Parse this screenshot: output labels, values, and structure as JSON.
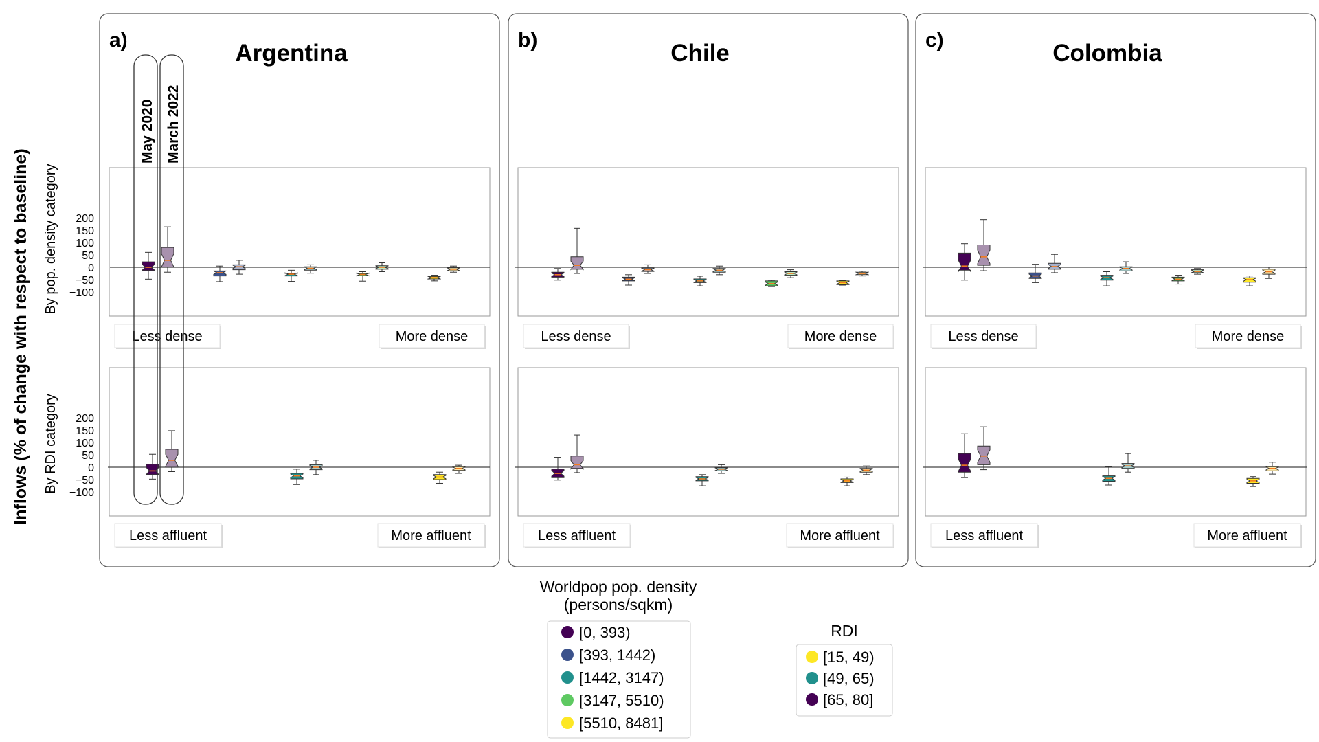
{
  "figure": {
    "ylabel_main": "Inflows (% of change with respect to baseline)",
    "row_labels": [
      "By pop. density category",
      "By RDI category"
    ],
    "period_labels": [
      "May 2020",
      "March 2022"
    ],
    "yticks": [
      "200",
      "150",
      "100",
      "50",
      "0",
      "−50",
      "−100"
    ],
    "density_end_labels": [
      "Less dense",
      "More dense"
    ],
    "rdi_end_labels": [
      "Less affluent",
      "More affluent"
    ]
  },
  "legends": {
    "density": {
      "title_line1": "Worldpop pop. density",
      "title_line2": "(persons/sqkm)",
      "items": [
        {
          "label": "[0, 393)",
          "color": "#440154"
        },
        {
          "label": "[393, 1442)",
          "color": "#3b528b"
        },
        {
          "label": "[1442, 3147)",
          "color": "#21908c"
        },
        {
          "label": "[3147, 5510)",
          "color": "#5ec962"
        },
        {
          "label": "[5510, 8481]",
          "color": "#fde725"
        }
      ]
    },
    "rdi": {
      "title": "RDI",
      "items": [
        {
          "label": "[15, 49)",
          "color": "#fde725"
        },
        {
          "label": "[49, 65)",
          "color": "#21908c"
        },
        {
          "label": "[65, 80]",
          "color": "#440154"
        }
      ]
    }
  },
  "chart_data": [
    {
      "type": "boxplot",
      "country": "Argentina",
      "panel_label": "a)",
      "ylim": [
        -100,
        200
      ],
      "density": {
        "categories": [
          "[0, 393)",
          "[393, 1442)",
          "[1442, 3147)",
          "[3147, 5510)",
          "[5510, 8481]"
        ],
        "series": [
          {
            "name": "May 2020",
            "boxes": [
              [
                -48,
                -13,
                0,
                22,
                60
              ],
              [
                -58,
                -35,
                -22,
                -15,
                5
              ],
              [
                -57,
                -35,
                -28,
                -25,
                -12
              ],
              [
                -56,
                -34,
                -29,
                -25,
                -18
              ],
              [
                -55,
                -47,
                -42,
                -37,
                -32
              ]
            ]
          },
          {
            "name": "March 2022",
            "boxes": [
              [
                -20,
                0,
                28,
                80,
                163
              ],
              [
                -28,
                -10,
                2,
                10,
                28
              ],
              [
                -24,
                -12,
                -4,
                2,
                10
              ],
              [
                -18,
                -8,
                0,
                6,
                18
              ],
              [
                -20,
                -14,
                -8,
                -2,
                5
              ]
            ]
          }
        ]
      },
      "rdi": {
        "categories": [
          "[15, 49)",
          "[49, 65)",
          "[65, 80]"
        ],
        "series": [
          {
            "name": "May 2020",
            "boxes": [
              [
                -48,
                -30,
                -15,
                12,
                52
              ],
              [
                -70,
                -47,
                -35,
                -25,
                -8
              ],
              [
                -65,
                -50,
                -40,
                -30,
                -20
              ]
            ]
          },
          {
            "name": "March 2022",
            "boxes": [
              [
                -18,
                0,
                28,
                72,
                147
              ],
              [
                -30,
                -10,
                0,
                10,
                28
              ],
              [
                -25,
                -13,
                -5,
                2,
                8
              ]
            ]
          }
        ]
      }
    },
    {
      "type": "boxplot",
      "country": "Chile",
      "panel_label": "b)",
      "ylim": [
        -100,
        200
      ],
      "density": {
        "categories": [
          "[0, 393)",
          "[393, 1442)",
          "[1442, 3147)",
          "[3147, 5510)",
          "[5510, 8481]"
        ],
        "series": [
          {
            "name": "May 2020",
            "boxes": [
              [
                -52,
                -40,
                -30,
                -20,
                -5
              ],
              [
                -72,
                -55,
                -48,
                -40,
                -30
              ],
              [
                -75,
                -62,
                -55,
                -47,
                -36
              ],
              [
                -78,
                -75,
                -66,
                -55,
                -52
              ],
              [
                -72,
                -70,
                -62,
                -55,
                -53
              ]
            ]
          },
          {
            "name": "March 2022",
            "boxes": [
              [
                -25,
                -8,
                8,
                42,
                157
              ],
              [
                -25,
                -17,
                -10,
                -3,
                10
              ],
              [
                -30,
                -20,
                -12,
                -5,
                5
              ],
              [
                -42,
                -32,
                -25,
                -18,
                -10
              ],
              [
                -35,
                -30,
                -25,
                -20,
                -16
              ]
            ]
          }
        ]
      },
      "rdi": {
        "categories": [
          "[15, 49)",
          "[49, 65)",
          "[65, 80]"
        ],
        "series": [
          {
            "name": "May 2020",
            "boxes": [
              [
                -52,
                -42,
                -25,
                -8,
                40
              ],
              [
                -75,
                -55,
                -47,
                -38,
                -30
              ],
              [
                -75,
                -62,
                -55,
                -47,
                -40
              ]
            ]
          },
          {
            "name": "March 2022",
            "boxes": [
              [
                -22,
                -5,
                10,
                45,
                130
              ],
              [
                -25,
                -15,
                -8,
                -2,
                10
              ],
              [
                -30,
                -20,
                -12,
                -5,
                5
              ]
            ]
          }
        ]
      }
    },
    {
      "type": "boxplot",
      "country": "Colombia",
      "panel_label": "c)",
      "ylim": [
        -100,
        200
      ],
      "density": {
        "categories": [
          "[0, 393)",
          "[393, 1442)",
          "[1442, 3147)",
          "[3147, 5510)",
          "[5510, 8481]"
        ],
        "series": [
          {
            "name": "May 2020",
            "boxes": [
              [
                -52,
                -12,
                5,
                57,
                95
              ],
              [
                -62,
                -45,
                -35,
                -23,
                12
              ],
              [
                -75,
                -52,
                -42,
                -32,
                -18
              ],
              [
                -68,
                -55,
                -48,
                -40,
                -32
              ],
              [
                -75,
                -60,
                -50,
                -42,
                -35
              ]
            ]
          },
          {
            "name": "March 2022",
            "boxes": [
              [
                -14,
                8,
                42,
                90,
                192
              ],
              [
                -22,
                -8,
                3,
                16,
                52
              ],
              [
                -25,
                -15,
                -5,
                2,
                22
              ],
              [
                -28,
                -22,
                -17,
                -10,
                -5
              ],
              [
                -45,
                -28,
                -18,
                -8,
                0
              ]
            ]
          }
        ]
      },
      "rdi": {
        "categories": [
          "[15, 49)",
          "[49, 65)",
          "[65, 80]"
        ],
        "series": [
          {
            "name": "May 2020",
            "boxes": [
              [
                -42,
                -20,
                8,
                55,
                135
              ],
              [
                -72,
                -57,
                -45,
                -35,
                2
              ],
              [
                -78,
                -65,
                -55,
                -45,
                -38
              ]
            ]
          },
          {
            "name": "March 2022",
            "boxes": [
              [
                -10,
                10,
                45,
                85,
                163
              ],
              [
                -20,
                -5,
                5,
                15,
                55
              ],
              [
                -28,
                -15,
                -5,
                2,
                20
              ]
            ]
          }
        ]
      }
    }
  ]
}
